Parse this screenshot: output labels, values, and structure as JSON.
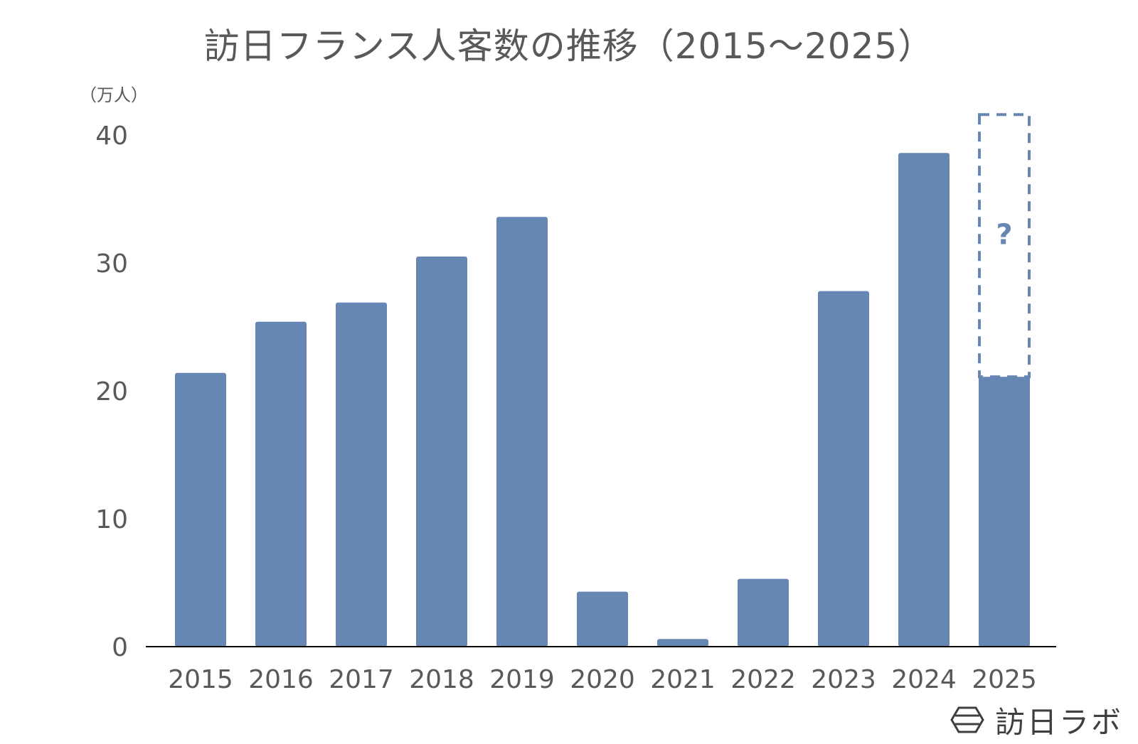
{
  "colors": {
    "bar": "#6686b4",
    "text": "#595959",
    "axis": "#000000",
    "estimate_outline": "#6686b4",
    "brand": "#3f3f3f"
  },
  "chart_data": {
    "type": "bar",
    "title": "訪日フランス人客数の推移（2015〜2025）",
    "ylabel": "（万人）",
    "xlabel": "",
    "categories": [
      "2015",
      "2016",
      "2017",
      "2018",
      "2019",
      "2020",
      "2021",
      "2022",
      "2023",
      "2024",
      "2025"
    ],
    "values": [
      21.4,
      25.4,
      26.9,
      30.5,
      33.6,
      4.3,
      0.6,
      5.3,
      27.8,
      38.6,
      21.1
    ],
    "ylim": [
      0,
      40
    ],
    "yticks": [
      0,
      10,
      20,
      30,
      40
    ],
    "grid": false,
    "estimate": {
      "category": "2025",
      "range": [
        21.1,
        41.6
      ],
      "label": "?"
    }
  },
  "brand": {
    "name": "訪日ラボ",
    "logo_icon": "hexagon-logo-icon"
  }
}
